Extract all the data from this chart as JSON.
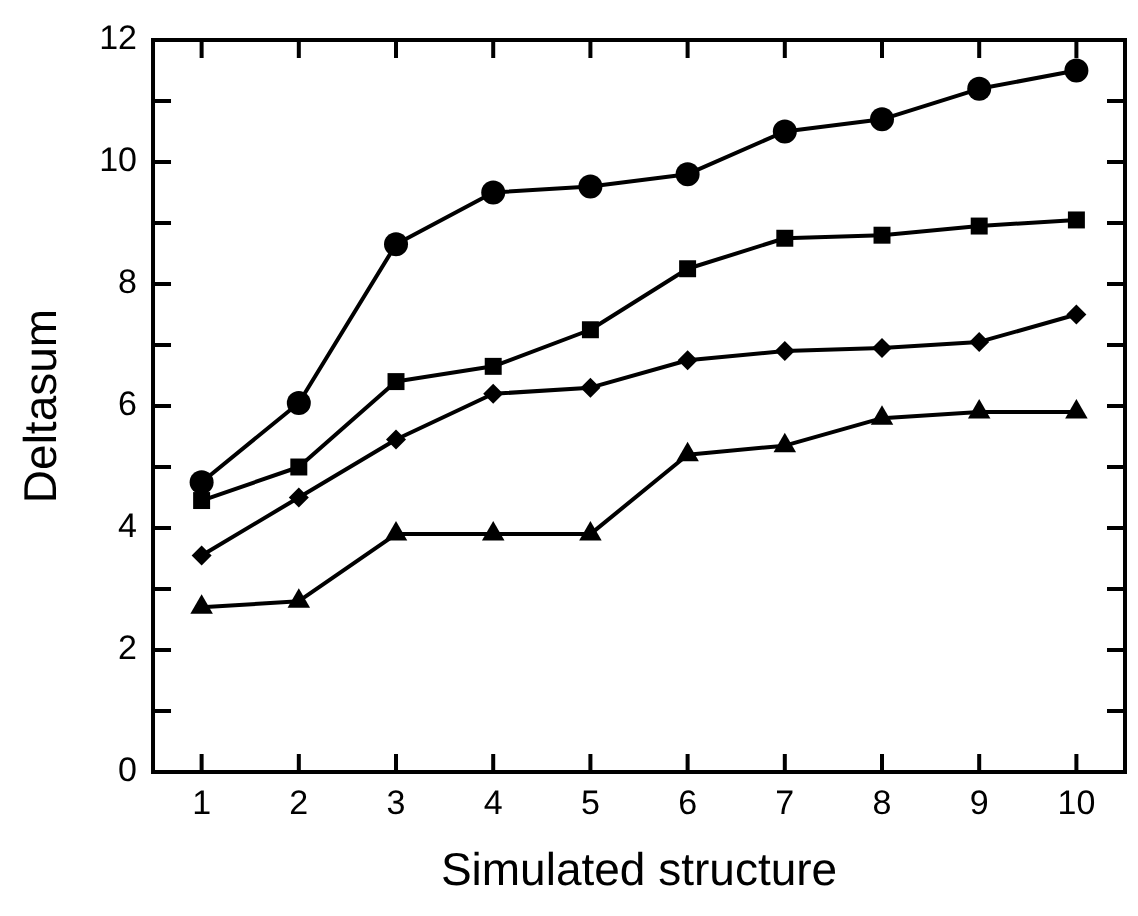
{
  "chart_data": {
    "type": "line",
    "xlabel": "Simulated structure",
    "ylabel": "Deltasum",
    "x": [
      1,
      2,
      3,
      4,
      5,
      6,
      7,
      8,
      9,
      10
    ],
    "xlim": [
      0.5,
      10.5
    ],
    "xticks": [
      1,
      2,
      3,
      4,
      5,
      6,
      7,
      8,
      9,
      10
    ],
    "ylim": [
      0,
      12
    ],
    "yticks": [
      0,
      {
        "value": 1,
        "label": null
      },
      2,
      {
        "value": 3,
        "label": null
      },
      4,
      {
        "value": 5,
        "label": null
      },
      6,
      {
        "value": 7,
        "label": null
      },
      8,
      {
        "value": 9,
        "label": null
      },
      10,
      {
        "value": 11,
        "label": null
      },
      12
    ],
    "grid": false,
    "legend": false,
    "line_style": "solid",
    "series": [
      {
        "color": "#000000",
        "marker": "circle",
        "values": [
          4.75,
          6.05,
          8.65,
          9.5,
          9.6,
          9.8,
          10.5,
          10.7,
          11.2,
          11.5
        ]
      },
      {
        "color": "#000000",
        "marker": "square",
        "values": [
          4.45,
          5.0,
          6.4,
          6.65,
          7.25,
          8.25,
          8.75,
          8.8,
          8.95,
          9.05
        ]
      },
      {
        "color": "#000000",
        "marker": "diamond",
        "values": [
          3.55,
          4.5,
          5.45,
          6.2,
          6.3,
          6.75,
          6.9,
          6.95,
          7.05,
          7.5
        ]
      },
      {
        "color": "#000000",
        "marker": "triangle",
        "values": [
          2.7,
          2.8,
          3.9,
          3.9,
          3.9,
          5.2,
          5.35,
          5.8,
          5.9,
          5.9
        ]
      }
    ]
  }
}
